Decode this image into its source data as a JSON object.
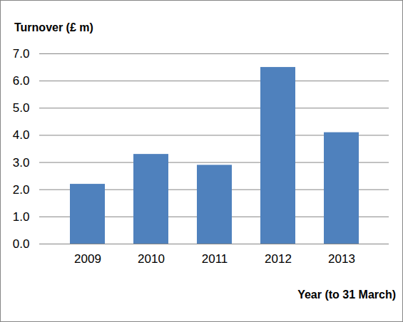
{
  "chart_data": {
    "type": "bar",
    "y_label": "Turnover (£ m)",
    "x_label": "Year (to 31 March)",
    "categories": [
      "2009",
      "2010",
      "2011",
      "2012",
      "2013"
    ],
    "values": [
      2.2,
      3.3,
      2.9,
      6.5,
      4.1
    ],
    "color": "#4f81bd",
    "ylim": [
      0,
      7
    ],
    "yticks": [
      0,
      1,
      2,
      3,
      4,
      5,
      6,
      7
    ],
    "grid": true
  }
}
